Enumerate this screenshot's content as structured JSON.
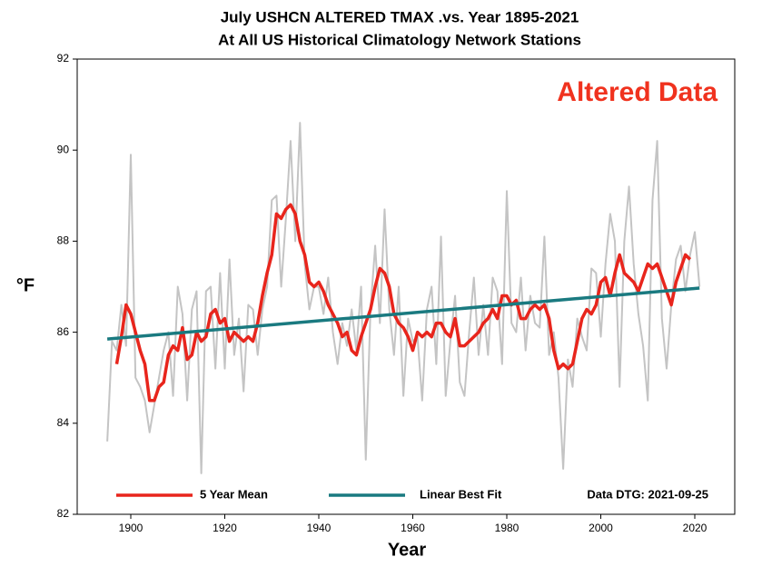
{
  "chart_data": {
    "type": "line",
    "title": "July USHCN ALTERED TMAX .vs. Year 1895-2021",
    "subtitle": "At All US Historical Climatology Network Stations",
    "xlabel": "Year",
    "ylabel": "°F",
    "annotations": [
      "Altered Data",
      "Data DTG: 2021-09-25"
    ],
    "xlim": [
      1888.6,
      2028.5
    ],
    "ylim": [
      82,
      92
    ],
    "xticks": [
      1900,
      1920,
      1940,
      1960,
      1980,
      2000,
      2020
    ],
    "yticks": [
      82,
      84,
      86,
      88,
      90,
      92
    ],
    "grid": false,
    "legend": "bottom",
    "series": [
      {
        "color": "#c4c4c4",
        "x": [
          1895,
          1896,
          1897,
          1898,
          1899,
          1900,
          1901,
          1902,
          1903,
          1904,
          1905,
          1906,
          1907,
          1908,
          1909,
          1910,
          1911,
          1912,
          1913,
          1914,
          1915,
          1916,
          1917,
          1918,
          1919,
          1920,
          1921,
          1922,
          1923,
          1924,
          1925,
          1926,
          1927,
          1928,
          1929,
          1930,
          1931,
          1932,
          1933,
          1934,
          1935,
          1936,
          1937,
          1938,
          1939,
          1940,
          1941,
          1942,
          1943,
          1944,
          1945,
          1946,
          1947,
          1948,
          1949,
          1950,
          1951,
          1952,
          1953,
          1954,
          1955,
          1956,
          1957,
          1958,
          1959,
          1960,
          1961,
          1962,
          1963,
          1964,
          1965,
          1966,
          1967,
          1968,
          1969,
          1970,
          1971,
          1972,
          1973,
          1974,
          1975,
          1976,
          1977,
          1978,
          1979,
          1980,
          1981,
          1982,
          1983,
          1984,
          1985,
          1986,
          1987,
          1988,
          1989,
          1990,
          1991,
          1992,
          1993,
          1994,
          1995,
          1996,
          1997,
          1998,
          1999,
          2000,
          2001,
          2002,
          2003,
          2004,
          2005,
          2006,
          2007,
          2008,
          2009,
          2010,
          2011,
          2012,
          2013,
          2014,
          2015,
          2016,
          2017,
          2018,
          2019,
          2020,
          2021
        ],
        "values": [
          83.6,
          85.8,
          85.6,
          86.6,
          85.7,
          89.9,
          85.0,
          84.8,
          84.5,
          83.8,
          84.4,
          85.0,
          85.6,
          86.0,
          84.6,
          87.0,
          86.4,
          84.5,
          86.5,
          86.9,
          82.9,
          86.9,
          87.0,
          85.2,
          87.3,
          85.2,
          87.6,
          85.5,
          86.3,
          84.7,
          86.6,
          86.5,
          85.5,
          86.5,
          87.0,
          88.9,
          89.0,
          87.0,
          88.5,
          90.2,
          88.0,
          90.6,
          87.5,
          86.5,
          87.0,
          87.0,
          86.4,
          87.2,
          86.0,
          85.3,
          86.2,
          85.7,
          86.5,
          85.6,
          87.0,
          83.2,
          86.5,
          87.9,
          86.2,
          88.7,
          86.5,
          85.5,
          87.0,
          84.6,
          86.3,
          85.8,
          85.9,
          84.5,
          86.5,
          87.0,
          85.3,
          88.1,
          84.6,
          85.8,
          86.8,
          84.9,
          84.6,
          86.0,
          87.2,
          85.5,
          86.6,
          85.5,
          87.2,
          86.9,
          85.3,
          89.1,
          86.2,
          86.0,
          87.2,
          85.6,
          86.8,
          86.2,
          86.1,
          88.1,
          85.5,
          86.0,
          85.0,
          83.0,
          85.4,
          84.8,
          86.3,
          85.9,
          85.6,
          87.4,
          87.3,
          85.9,
          87.5,
          88.6,
          88.0,
          84.8,
          88.0,
          89.2,
          87.5,
          86.4,
          85.7,
          84.5,
          88.9,
          90.2,
          86.3,
          85.2,
          86.6,
          87.6,
          87.9,
          86.9,
          87.7,
          88.2,
          87.0
        ]
      },
      {
        "name": "5 Year Mean",
        "color": "#e8251c",
        "x": [
          1897,
          1898,
          1899,
          1900,
          1901,
          1902,
          1903,
          1904,
          1905,
          1906,
          1907,
          1908,
          1909,
          1910,
          1911,
          1912,
          1913,
          1914,
          1915,
          1916,
          1917,
          1918,
          1919,
          1920,
          1921,
          1922,
          1923,
          1924,
          1925,
          1926,
          1927,
          1928,
          1929,
          1930,
          1931,
          1932,
          1933,
          1934,
          1935,
          1936,
          1937,
          1938,
          1939,
          1940,
          1941,
          1942,
          1943,
          1944,
          1945,
          1946,
          1947,
          1948,
          1949,
          1950,
          1951,
          1952,
          1953,
          1954,
          1955,
          1956,
          1957,
          1958,
          1959,
          1960,
          1961,
          1962,
          1963,
          1964,
          1965,
          1966,
          1967,
          1968,
          1969,
          1970,
          1971,
          1972,
          1973,
          1974,
          1975,
          1976,
          1977,
          1978,
          1979,
          1980,
          1981,
          1982,
          1983,
          1984,
          1985,
          1986,
          1987,
          1988,
          1989,
          1990,
          1991,
          1992,
          1993,
          1994,
          1995,
          1996,
          1997,
          1998,
          1999,
          2000,
          2001,
          2002,
          2003,
          2004,
          2005,
          2006,
          2007,
          2008,
          2009,
          2010,
          2011,
          2012,
          2013,
          2014,
          2015,
          2016,
          2017,
          2018,
          2019
        ],
        "values": [
          85.3,
          85.9,
          86.6,
          86.4,
          86.0,
          85.6,
          85.3,
          84.5,
          84.5,
          84.8,
          84.9,
          85.5,
          85.7,
          85.6,
          86.1,
          85.4,
          85.5,
          86.0,
          85.8,
          85.9,
          86.4,
          86.5,
          86.2,
          86.3,
          85.8,
          86.0,
          85.9,
          85.8,
          85.9,
          85.8,
          86.2,
          86.8,
          87.3,
          87.7,
          88.6,
          88.5,
          88.7,
          88.8,
          88.6,
          88.0,
          87.7,
          87.1,
          87.0,
          87.1,
          86.9,
          86.6,
          86.4,
          86.2,
          85.9,
          86.0,
          85.6,
          85.5,
          85.9,
          86.2,
          86.5,
          87.0,
          87.4,
          87.3,
          87.0,
          86.4,
          86.2,
          86.1,
          85.9,
          85.6,
          86.0,
          85.9,
          86.0,
          85.9,
          86.2,
          86.2,
          86.0,
          85.9,
          86.3,
          85.7,
          85.7,
          85.8,
          85.9,
          86.0,
          86.2,
          86.3,
          86.5,
          86.3,
          86.8,
          86.8,
          86.6,
          86.7,
          86.3,
          86.3,
          86.5,
          86.6,
          86.5,
          86.6,
          86.3,
          85.6,
          85.2,
          85.3,
          85.2,
          85.3,
          85.8,
          86.3,
          86.5,
          86.4,
          86.6,
          87.1,
          87.2,
          86.8,
          87.3,
          87.7,
          87.3,
          87.2,
          87.1,
          86.9,
          87.2,
          87.5,
          87.4,
          87.5,
          87.2,
          86.9,
          86.6,
          87.1,
          87.4,
          87.7,
          87.6
        ]
      },
      {
        "name": "Linear Best Fit",
        "color": "#1a7a80",
        "x": [
          1895,
          2021
        ],
        "values": [
          85.85,
          86.97
        ]
      }
    ]
  }
}
